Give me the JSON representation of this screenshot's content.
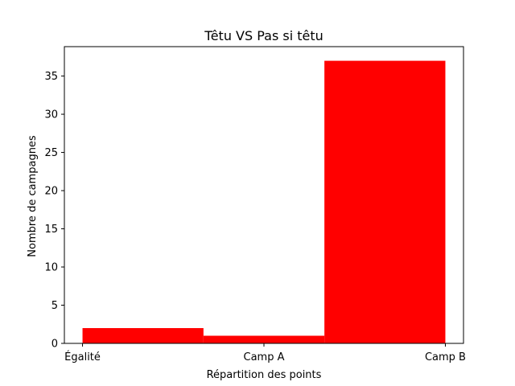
{
  "chart_data": {
    "type": "bar",
    "title": "Têtu VS Pas si têtu",
    "xlabel": "Répartition des points",
    "ylabel": "Nombre de campagnes",
    "x_tick_labels": [
      "Égalité",
      "Camp A",
      "Camp B"
    ],
    "bins": [
      {
        "from": 0,
        "to": 0.6667,
        "value": 2
      },
      {
        "from": 0.6667,
        "to": 1.3333,
        "value": 1
      },
      {
        "from": 1.3333,
        "to": 2,
        "value": 37
      }
    ],
    "y_ticks": [
      0,
      5,
      10,
      15,
      20,
      25,
      30,
      35
    ],
    "xlim": [
      -0.1,
      2.1
    ],
    "ylim": [
      0,
      38.85
    ],
    "grid": false,
    "legend": "none",
    "colors": {
      "bar": "#ff0000",
      "axis": "#000000",
      "background": "#ffffff"
    }
  }
}
